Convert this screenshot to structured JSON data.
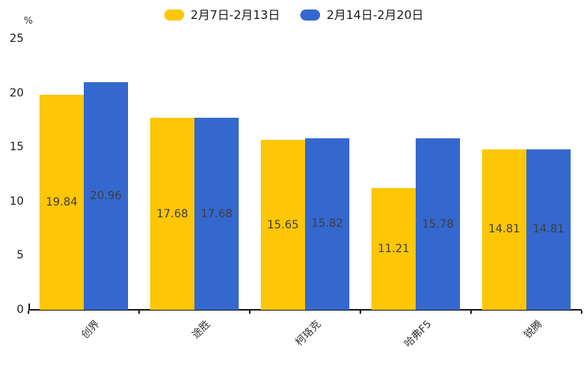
{
  "legend": {
    "items": [
      {
        "label": "2月7日-2月13日",
        "color": "#FDC606"
      },
      {
        "label": "2月14日-2月20日",
        "color": "#3568CE"
      }
    ]
  },
  "chart_data": {
    "type": "bar",
    "title": "",
    "unit": "%",
    "xlabel": "",
    "ylabel": "%",
    "categories": [
      "创界",
      "途胜",
      "柯珞克",
      "哈弗F5",
      "锐腾"
    ],
    "series": [
      {
        "name": "2月7日-2月13日",
        "color": "#FDC606",
        "values": [
          19.84,
          17.68,
          15.65,
          11.21,
          14.81
        ]
      },
      {
        "name": "2月14日-2月20日",
        "color": "#3568CE",
        "values": [
          20.96,
          17.68,
          15.82,
          15.78,
          14.81
        ]
      }
    ],
    "ylim": [
      0,
      25
    ],
    "yticks": [
      0,
      5,
      10,
      15,
      20,
      25
    ],
    "grid": false,
    "legend_position": "top",
    "value_labels": true,
    "value_label_color": "#3d3d3d",
    "axis_color": "#1f1f1f"
  }
}
